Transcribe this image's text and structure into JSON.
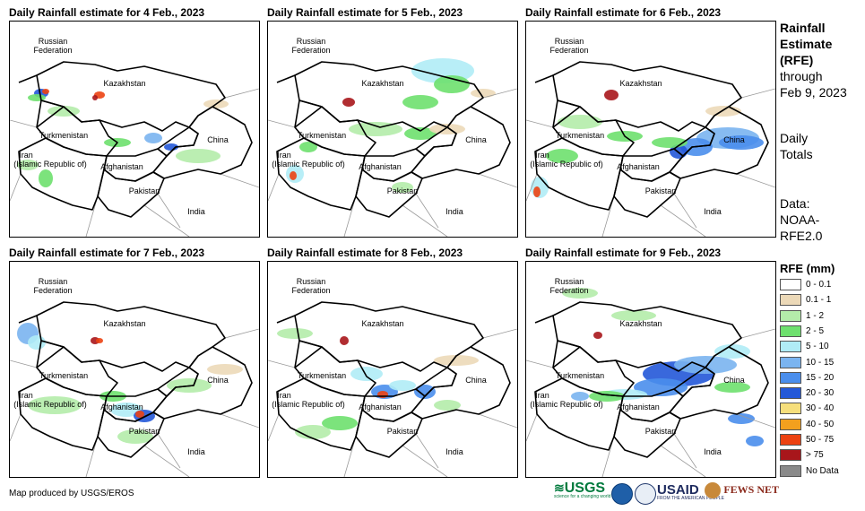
{
  "panels": [
    {
      "title": "Daily Rainfall estimate for 4 Feb., 2023"
    },
    {
      "title": "Daily Rainfall estimate for 5 Feb., 2023"
    },
    {
      "title": "Daily Rainfall estimate for 6 Feb., 2023"
    },
    {
      "title": "Daily Rainfall estimate for 7 Feb., 2023"
    },
    {
      "title": "Daily Rainfall estimate for 8 Feb., 2023"
    },
    {
      "title": "Daily Rainfall estimate for 9 Feb., 2023"
    }
  ],
  "map_labels": {
    "russia": "Russian",
    "russia2": "Federation",
    "kazakhstan": "Kazakhstan",
    "turkmenistan": "Turkmenistan",
    "iran": "Iran",
    "iran2": "(Islamic Republic of)",
    "afghanistan": "Afghanistan",
    "pakistan": "Pakistan",
    "china": "China",
    "india": "India"
  },
  "side": {
    "title1": "Rainfall",
    "title2": "Estimate",
    "title3": "(RFE)",
    "through": "through",
    "date": "Feb 9, 2023",
    "daily": "Daily",
    "totals": "Totals",
    "data": "Data:",
    "source1": "NOAA-",
    "source2": "RFE2.0"
  },
  "legend": {
    "title": "RFE (mm)",
    "items": [
      {
        "label": "0 - 0.1",
        "color": "#ffffff"
      },
      {
        "label": "0.1 - 1",
        "color": "#ecd9b8"
      },
      {
        "label": "1 - 2",
        "color": "#b4ecaa"
      },
      {
        "label": "2 - 5",
        "color": "#6ee06e"
      },
      {
        "label": "5 - 10",
        "color": "#b0ecf6"
      },
      {
        "label": "10 - 15",
        "color": "#7ab4f0"
      },
      {
        "label": "15 - 20",
        "color": "#4a8eec"
      },
      {
        "label": "20 - 30",
        "color": "#2458d8"
      },
      {
        "label": "30 - 40",
        "color": "#f6df7c"
      },
      {
        "label": "40 - 50",
        "color": "#f3a01e"
      },
      {
        "label": "50 - 75",
        "color": "#ec4212"
      },
      {
        "label": "> 75",
        "color": "#a8161b"
      },
      {
        "label": "No Data",
        "color": "#8a8a8a"
      }
    ]
  },
  "credit": "Map produced by USGS/EROS",
  "logos": {
    "usgs": "USGS",
    "usgs_tag": "science for a changing world",
    "usaid": "USAID",
    "usaid_tag": "FROM THE AMERICAN PEOPLE",
    "fews": "FEWS NET"
  }
}
